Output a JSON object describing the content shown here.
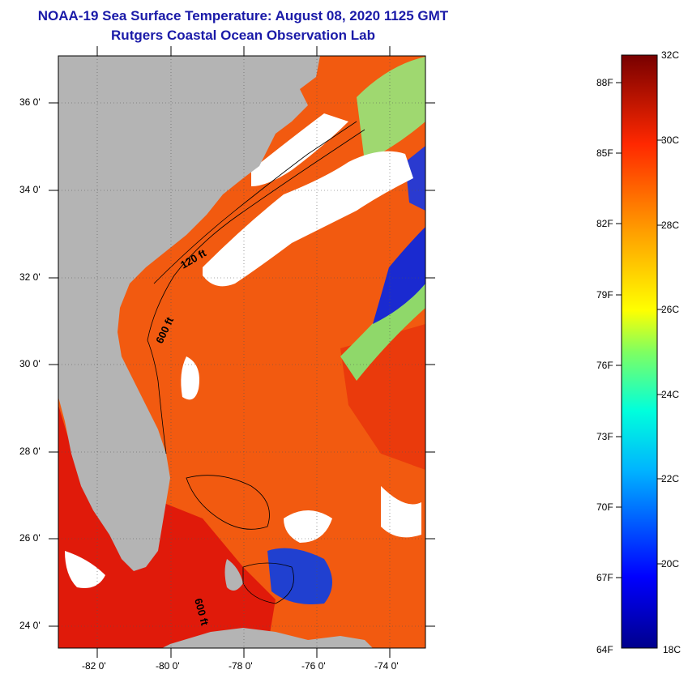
{
  "title": "NOAA-19 Sea Surface Temperature:  August 08, 2020 1125 GMT",
  "subtitle": "Rutgers Coastal Ocean Observation Lab",
  "map": {
    "lon_range": [
      -83,
      -73
    ],
    "lat_range": [
      23,
      37
    ],
    "lat_labels": [
      "36 0'",
      "34 0'",
      "32 0'",
      "30 0'",
      "28 0'",
      "26 0'",
      "24 0'"
    ],
    "lon_labels": [
      "-82 0'",
      "-80 0'",
      "-78 0'",
      "-76 0'",
      "-74 0'"
    ],
    "isobath_labels": [
      "120 ft",
      "600 ft",
      "600 ft"
    ],
    "colors": {
      "land": "#b4b4b4",
      "cloud": "#ffffff",
      "warm_water": "#f25a10",
      "hot_water": "#e01a0a"
    }
  },
  "colorbar": {
    "min_c": 18,
    "max_c": 32,
    "celsius_labels": [
      "32C",
      "30C",
      "28C",
      "26C",
      "24C",
      "22C",
      "20C",
      "18C"
    ],
    "fahrenheit_labels": [
      "88F",
      "85F",
      "82F",
      "79F",
      "76F",
      "73F",
      "70F",
      "67F",
      "64F"
    ]
  }
}
